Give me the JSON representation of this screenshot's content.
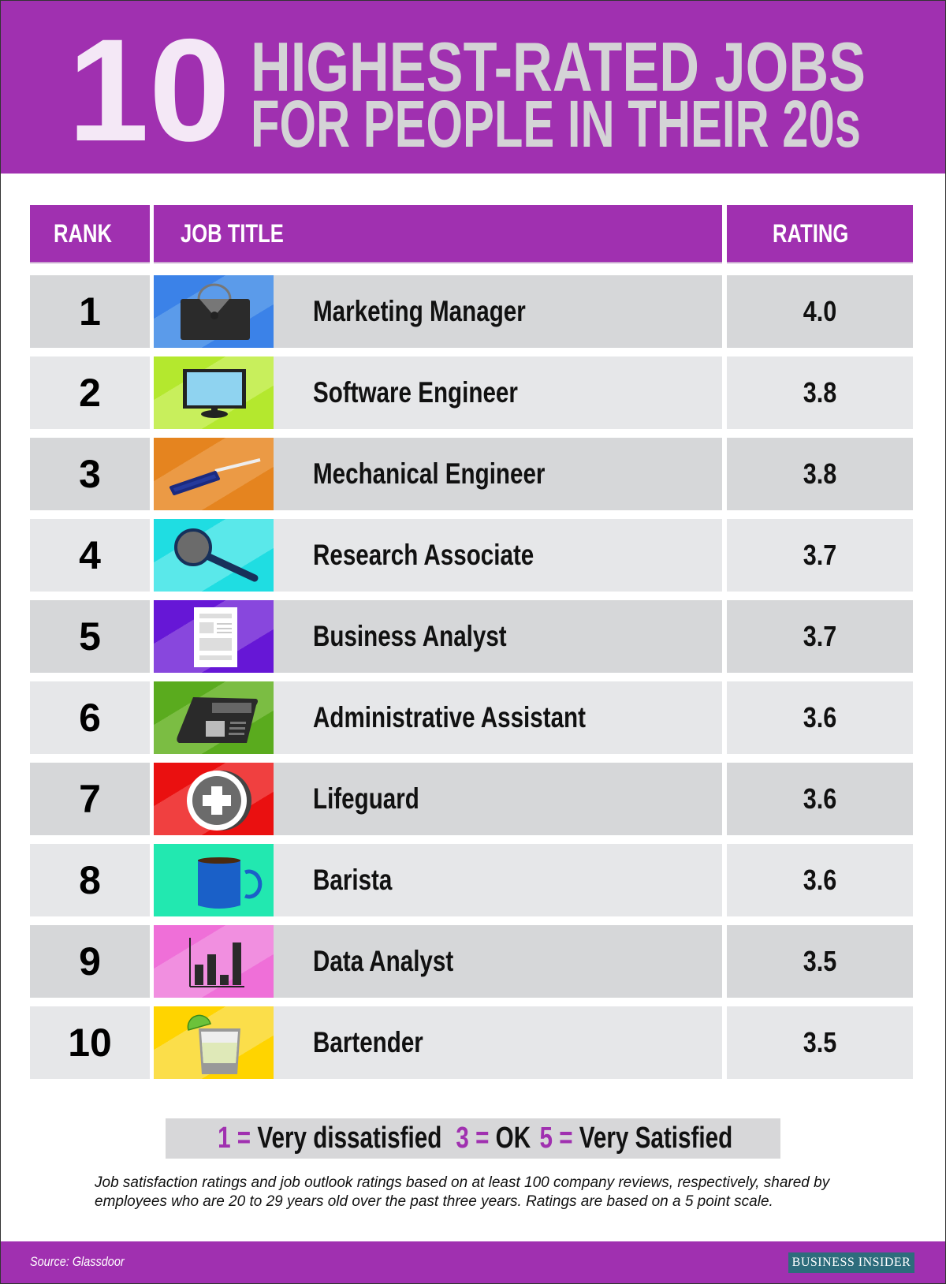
{
  "header": {
    "number": "10",
    "line1": "HIGHEST-RATED JOBS",
    "line2": "FOR PEOPLE IN THEIR 20s"
  },
  "colors": {
    "accent": "#a030b0",
    "row_dark": "#d6d7d9",
    "row_light": "#e6e7e9",
    "title_grey": "#d4d4d6"
  },
  "chart_data": {
    "type": "table",
    "columns": [
      "RANK",
      "JOB TITLE",
      "RATING"
    ],
    "rows": [
      {
        "rank": "1",
        "title": "Marketing Manager",
        "rating": "4.0",
        "icon": "briefcase-icon",
        "color": "#3b82e8",
        "color2": "#5b9bea"
      },
      {
        "rank": "2",
        "title": "Software Engineer",
        "rating": "3.8",
        "icon": "monitor-icon",
        "color": "#b4e82e",
        "color2": "#c8ef5c"
      },
      {
        "rank": "3",
        "title": "Mechanical Engineer",
        "rating": "3.8",
        "icon": "screwdriver-icon",
        "color": "#e5841f",
        "color2": "#eb9a45"
      },
      {
        "rank": "4",
        "title": "Research Associate",
        "rating": "3.7",
        "icon": "magnifying-glass-icon",
        "color": "#1fdde2",
        "color2": "#5ae8ea"
      },
      {
        "rank": "5",
        "title": "Business Analyst",
        "rating": "3.7",
        "icon": "document-icon",
        "color": "#6617d6",
        "color2": "#8847dd"
      },
      {
        "rank": "6",
        "title": "Administrative Assistant",
        "rating": "3.6",
        "icon": "desk-phone-icon",
        "color": "#5aab1e",
        "color2": "#7bbd43"
      },
      {
        "rank": "7",
        "title": "Lifeguard",
        "rating": "3.6",
        "icon": "first-aid-icon",
        "color": "#ea1010",
        "color2": "#f04040"
      },
      {
        "rank": "8",
        "title": "Barista",
        "rating": "3.6",
        "icon": "coffee-mug-icon",
        "color": "#22e8b0",
        "color2": "#22e8b0"
      },
      {
        "rank": "9",
        "title": "Data Analyst",
        "rating": "3.5",
        "icon": "bar-chart-icon",
        "color": "#ef6fd8",
        "color2": "#f18fe0"
      },
      {
        "rank": "10",
        "title": "Bartender",
        "rating": "3.5",
        "icon": "cocktail-glass-icon",
        "color": "#ffd400",
        "color2": "#fbde4a"
      }
    ]
  },
  "legend": [
    {
      "num": "1",
      "eq": " = ",
      "label": "Very dissatisfied"
    },
    {
      "num": "3",
      "eq": " = ",
      "label": "OK"
    },
    {
      "num": "5",
      "eq": " = ",
      "label": "Very Satisfied"
    }
  ],
  "note": "Job satisfaction ratings and job outlook ratings based on at least 100 company reviews, respectively, shared by employees who are 20 to 29 years old over the past three years. Ratings are based on a 5 point scale.",
  "footer": {
    "source": "Source: Glassdoor",
    "logo": "BUSINESS INSIDER"
  }
}
